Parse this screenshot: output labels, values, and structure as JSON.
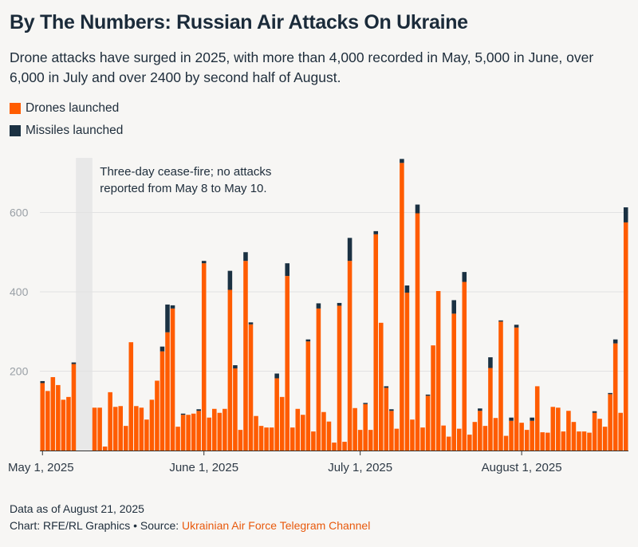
{
  "header": {
    "title": "By The Numbers: Russian Air Attacks On Ukraine",
    "subtitle": "Drone attacks have surged in 2025, with more than 4,000 recorded in May, 5,000 in June, over 6,000 in July and over 2400 by second half of August."
  },
  "legend": {
    "drones_label": "Drones launched",
    "missiles_label": "Missiles launched"
  },
  "colors": {
    "drones": "#ff5c00",
    "missiles": "#1b3142",
    "gap_shade": "#e8e8e8",
    "gridline": "#e2e2e2",
    "link": "#e8590c"
  },
  "footer": {
    "data_note": "Data as of August 21, 2025",
    "credit_prefix": "Chart: RFE/RL Graphics • Source: ",
    "source_name": "Ukrainian Air Force Telegram Channel"
  },
  "chart_data": {
    "type": "bar",
    "stacked": true,
    "grid": true,
    "legend_position": "top-left",
    "x_start": "2025-05-01",
    "x_ticks": [
      {
        "date": "2025-05-01",
        "label": "May 1, 2025"
      },
      {
        "date": "2025-06-01",
        "label": "June 1, 2025"
      },
      {
        "date": "2025-07-01",
        "label": "July 1, 2025"
      },
      {
        "date": "2025-08-01",
        "label": "August 1, 2025"
      }
    ],
    "y_ticks": [
      200,
      400,
      600
    ],
    "ylim": [
      0,
      750
    ],
    "annotation": {
      "start_date": "2025-05-08",
      "end_date": "2025-05-10",
      "lines": [
        "Three-day cease-fire; no attacks",
        "reported from May 8 to May 10."
      ]
    },
    "series": [
      {
        "name": "Drones launched",
        "values": [
          170,
          150,
          185,
          165,
          128,
          135,
          218,
          0,
          0,
          0,
          108,
          108,
          10,
          147,
          110,
          112,
          62,
          273,
          112,
          108,
          78,
          128,
          176,
          250,
          298,
          358,
          60,
          90,
          90,
          93,
          100,
          472,
          83,
          105,
          95,
          105,
          405,
          207,
          52,
          478,
          318,
          87,
          62,
          58,
          58,
          182,
          135,
          440,
          58,
          105,
          90,
          275,
          48,
          358,
          97,
          73,
          20,
          365,
          22,
          478,
          107,
          52,
          117,
          52,
          545,
          322,
          158,
          100,
          55,
          725,
          398,
          78,
          598,
          58,
          138,
          265,
          402,
          63,
          35,
          345,
          55,
          425,
          40,
          72,
          100,
          62,
          208,
          82,
          325,
          37,
          75,
          310,
          70,
          52,
          75,
          162,
          46,
          45,
          110,
          108,
          48,
          100,
          72,
          48,
          48,
          45,
          95,
          80,
          60,
          142,
          270,
          95,
          575
        ]
      },
      {
        "name": "Missiles launched",
        "values": [
          5,
          0,
          0,
          0,
          0,
          0,
          4,
          0,
          0,
          0,
          0,
          0,
          0,
          0,
          0,
          0,
          0,
          0,
          0,
          0,
          0,
          0,
          0,
          12,
          70,
          8,
          0,
          3,
          0,
          0,
          4,
          6,
          0,
          0,
          0,
          0,
          48,
          8,
          0,
          22,
          5,
          0,
          0,
          0,
          0,
          12,
          0,
          32,
          0,
          0,
          0,
          5,
          0,
          13,
          0,
          0,
          0,
          7,
          0,
          58,
          0,
          0,
          3,
          0,
          8,
          0,
          4,
          4,
          0,
          10,
          18,
          0,
          22,
          0,
          3,
          0,
          0,
          0,
          0,
          34,
          0,
          25,
          0,
          0,
          6,
          0,
          27,
          0,
          3,
          0,
          8,
          7,
          0,
          0,
          8,
          0,
          0,
          0,
          0,
          0,
          0,
          0,
          0,
          0,
          0,
          0,
          4,
          0,
          0,
          3,
          10,
          0,
          38
        ]
      }
    ]
  }
}
